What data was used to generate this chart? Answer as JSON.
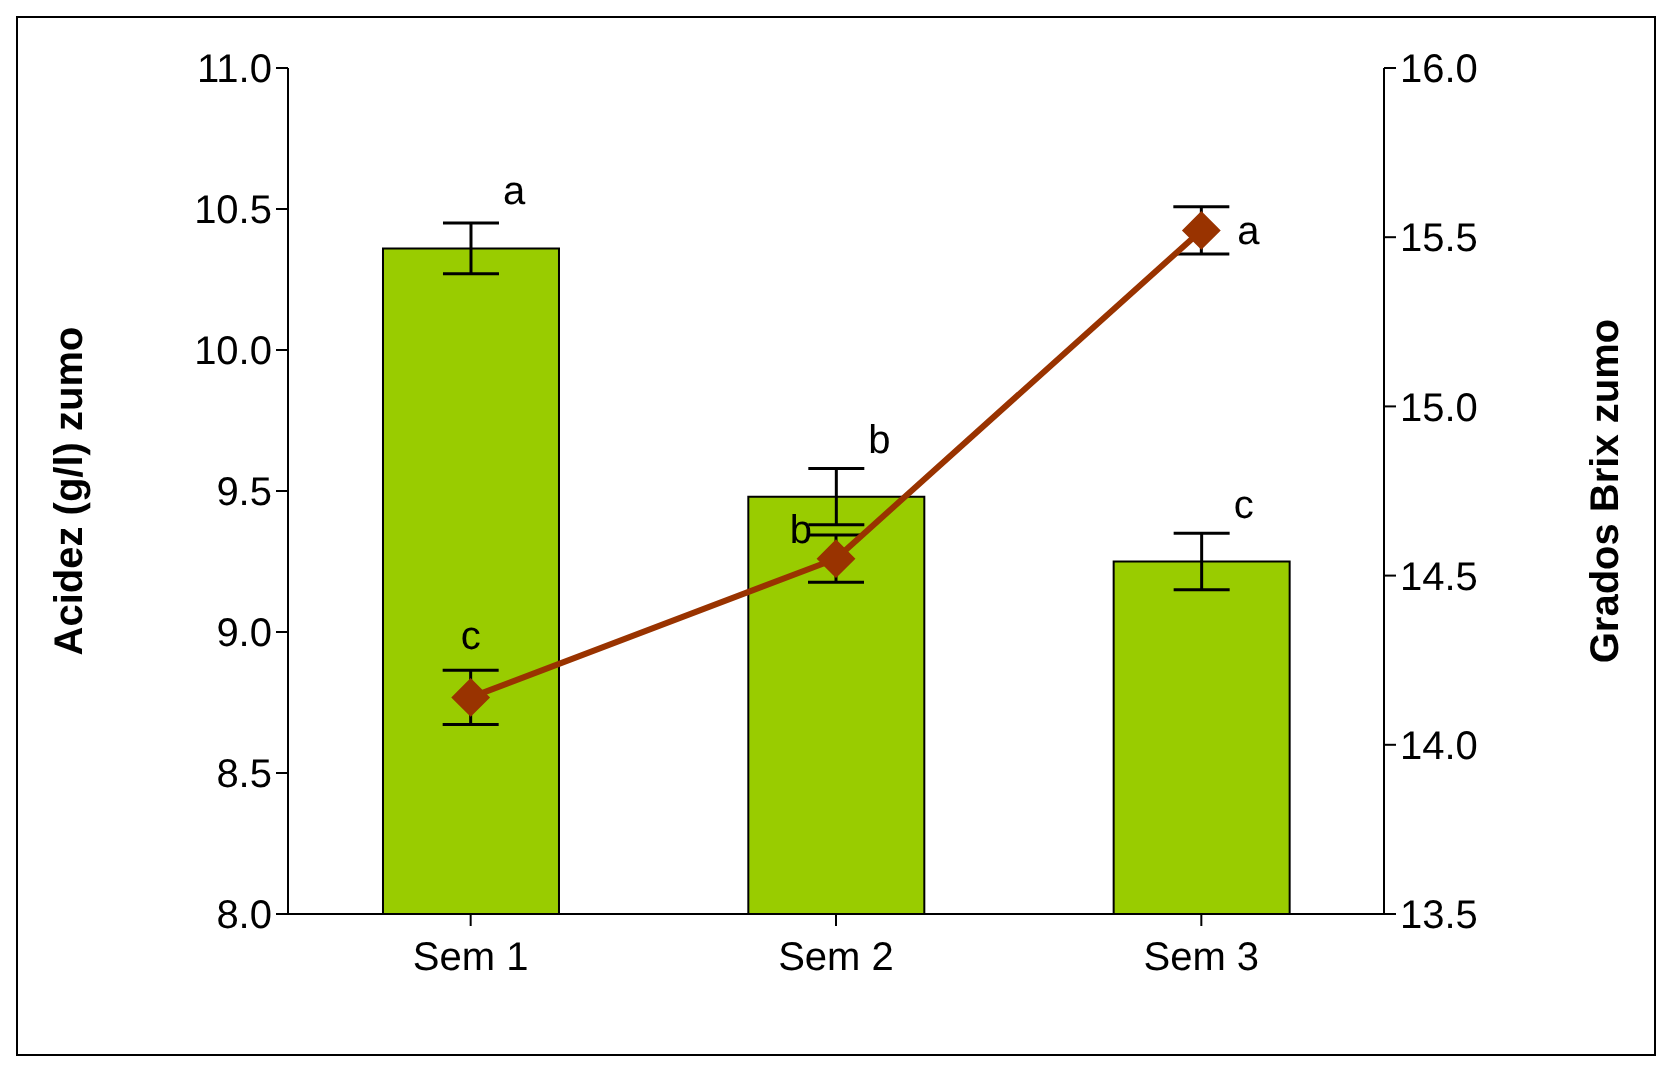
{
  "chart_data": {
    "type": "bar",
    "ylabel": "Acidez (g/l) zumo",
    "y2label": "Grados Brix zumo",
    "categories": [
      "Sem 1",
      "Sem 2",
      "Sem 3"
    ],
    "series": [
      {
        "color": "#99cc00",
        "values": [
          10.36,
          9.48,
          9.25
        ],
        "errors": [
          0.09,
          0.1,
          0.1
        ],
        "value_labels": [
          "a",
          "b",
          "c"
        ]
      },
      {
        "type": "line",
        "axis": "y2",
        "color": "#993300",
        "values": [
          14.14,
          14.55,
          15.52
        ],
        "errors": [
          0.08,
          0.07,
          0.07
        ],
        "value_labels": [
          "c",
          "b",
          "a"
        ]
      }
    ],
    "ylim": [
      8.0,
      11.0
    ],
    "yticks": [
      {
        "value": 8,
        "label": "8.0"
      },
      8.5,
      {
        "value": 9,
        "label": "9.0"
      },
      9.5,
      {
        "value": 10,
        "label": "10.0"
      },
      10.5,
      {
        "value": 11,
        "label": "11.0"
      }
    ],
    "y2lim": [
      13.5,
      16.0
    ],
    "y2ticks": [
      13.5,
      {
        "value": 14,
        "label": "14.0"
      },
      14.5,
      {
        "value": 15,
        "label": "15.0"
      },
      15.5,
      {
        "value": 16,
        "label": "16.0"
      }
    ],
    "marker": "diamond",
    "grid": false,
    "legend": false
  }
}
